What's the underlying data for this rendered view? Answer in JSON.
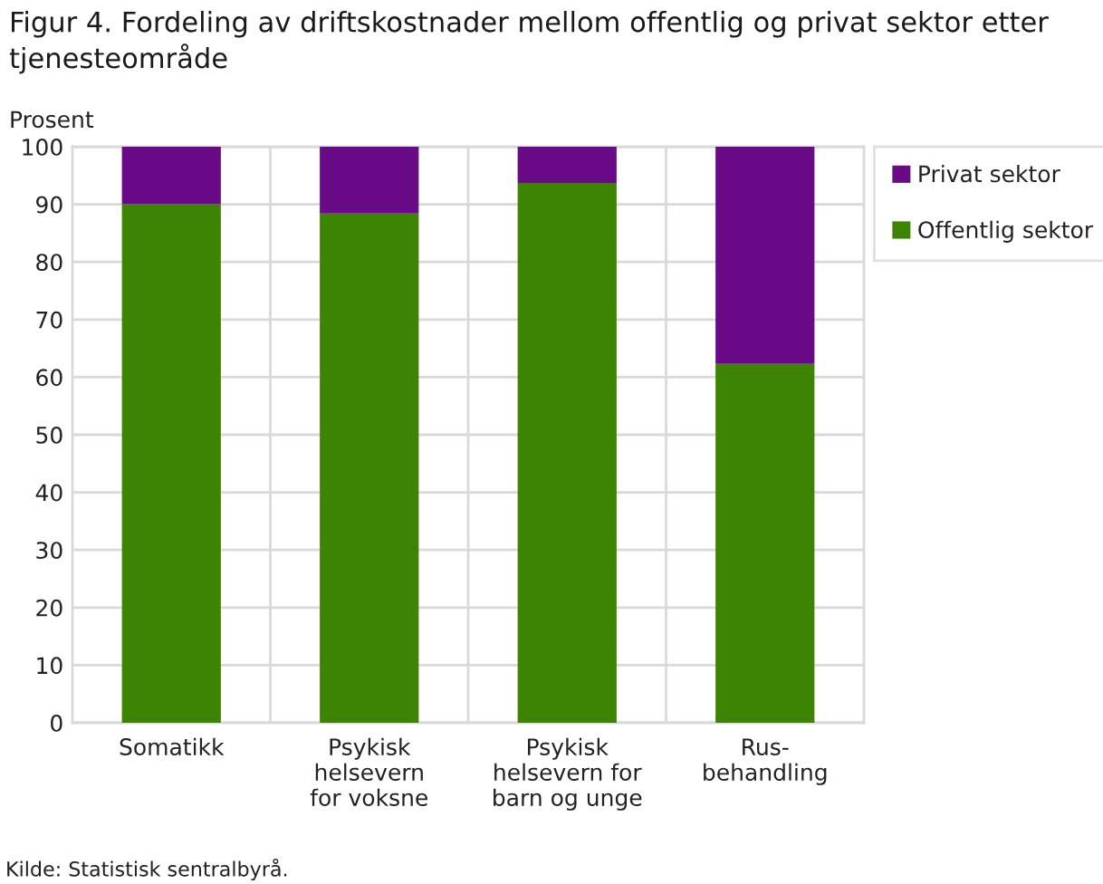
{
  "chart_data": {
    "type": "bar",
    "stacked": true,
    "title": "Figur 4. Fordeling av driftskostnader mellom offentlig og privat sektor etter tjenesteområde",
    "ylabel": "Prosent",
    "categories": [
      "Somatikk",
      "Psykisk\nhelsevern\nfor voksne",
      "Psykisk\nhelsevern for\nbarn og unge",
      "Rus-\nbehandling"
    ],
    "series": [
      {
        "name": "Offentlig sektor",
        "color": "#3e8403",
        "values": [
          90,
          88.4,
          93.7,
          62.3
        ]
      },
      {
        "name": "Privat sektor",
        "color": "#690a87",
        "values": [
          10,
          11.6,
          6.3,
          37.7
        ]
      }
    ],
    "ylim": [
      0,
      100
    ],
    "yticks": [
      0,
      10,
      20,
      30,
      40,
      50,
      60,
      70,
      80,
      90,
      100
    ],
    "grid": true,
    "legend": "top right",
    "annotations": [
      "Kilde: Statistisk sentralbyrå."
    ]
  }
}
